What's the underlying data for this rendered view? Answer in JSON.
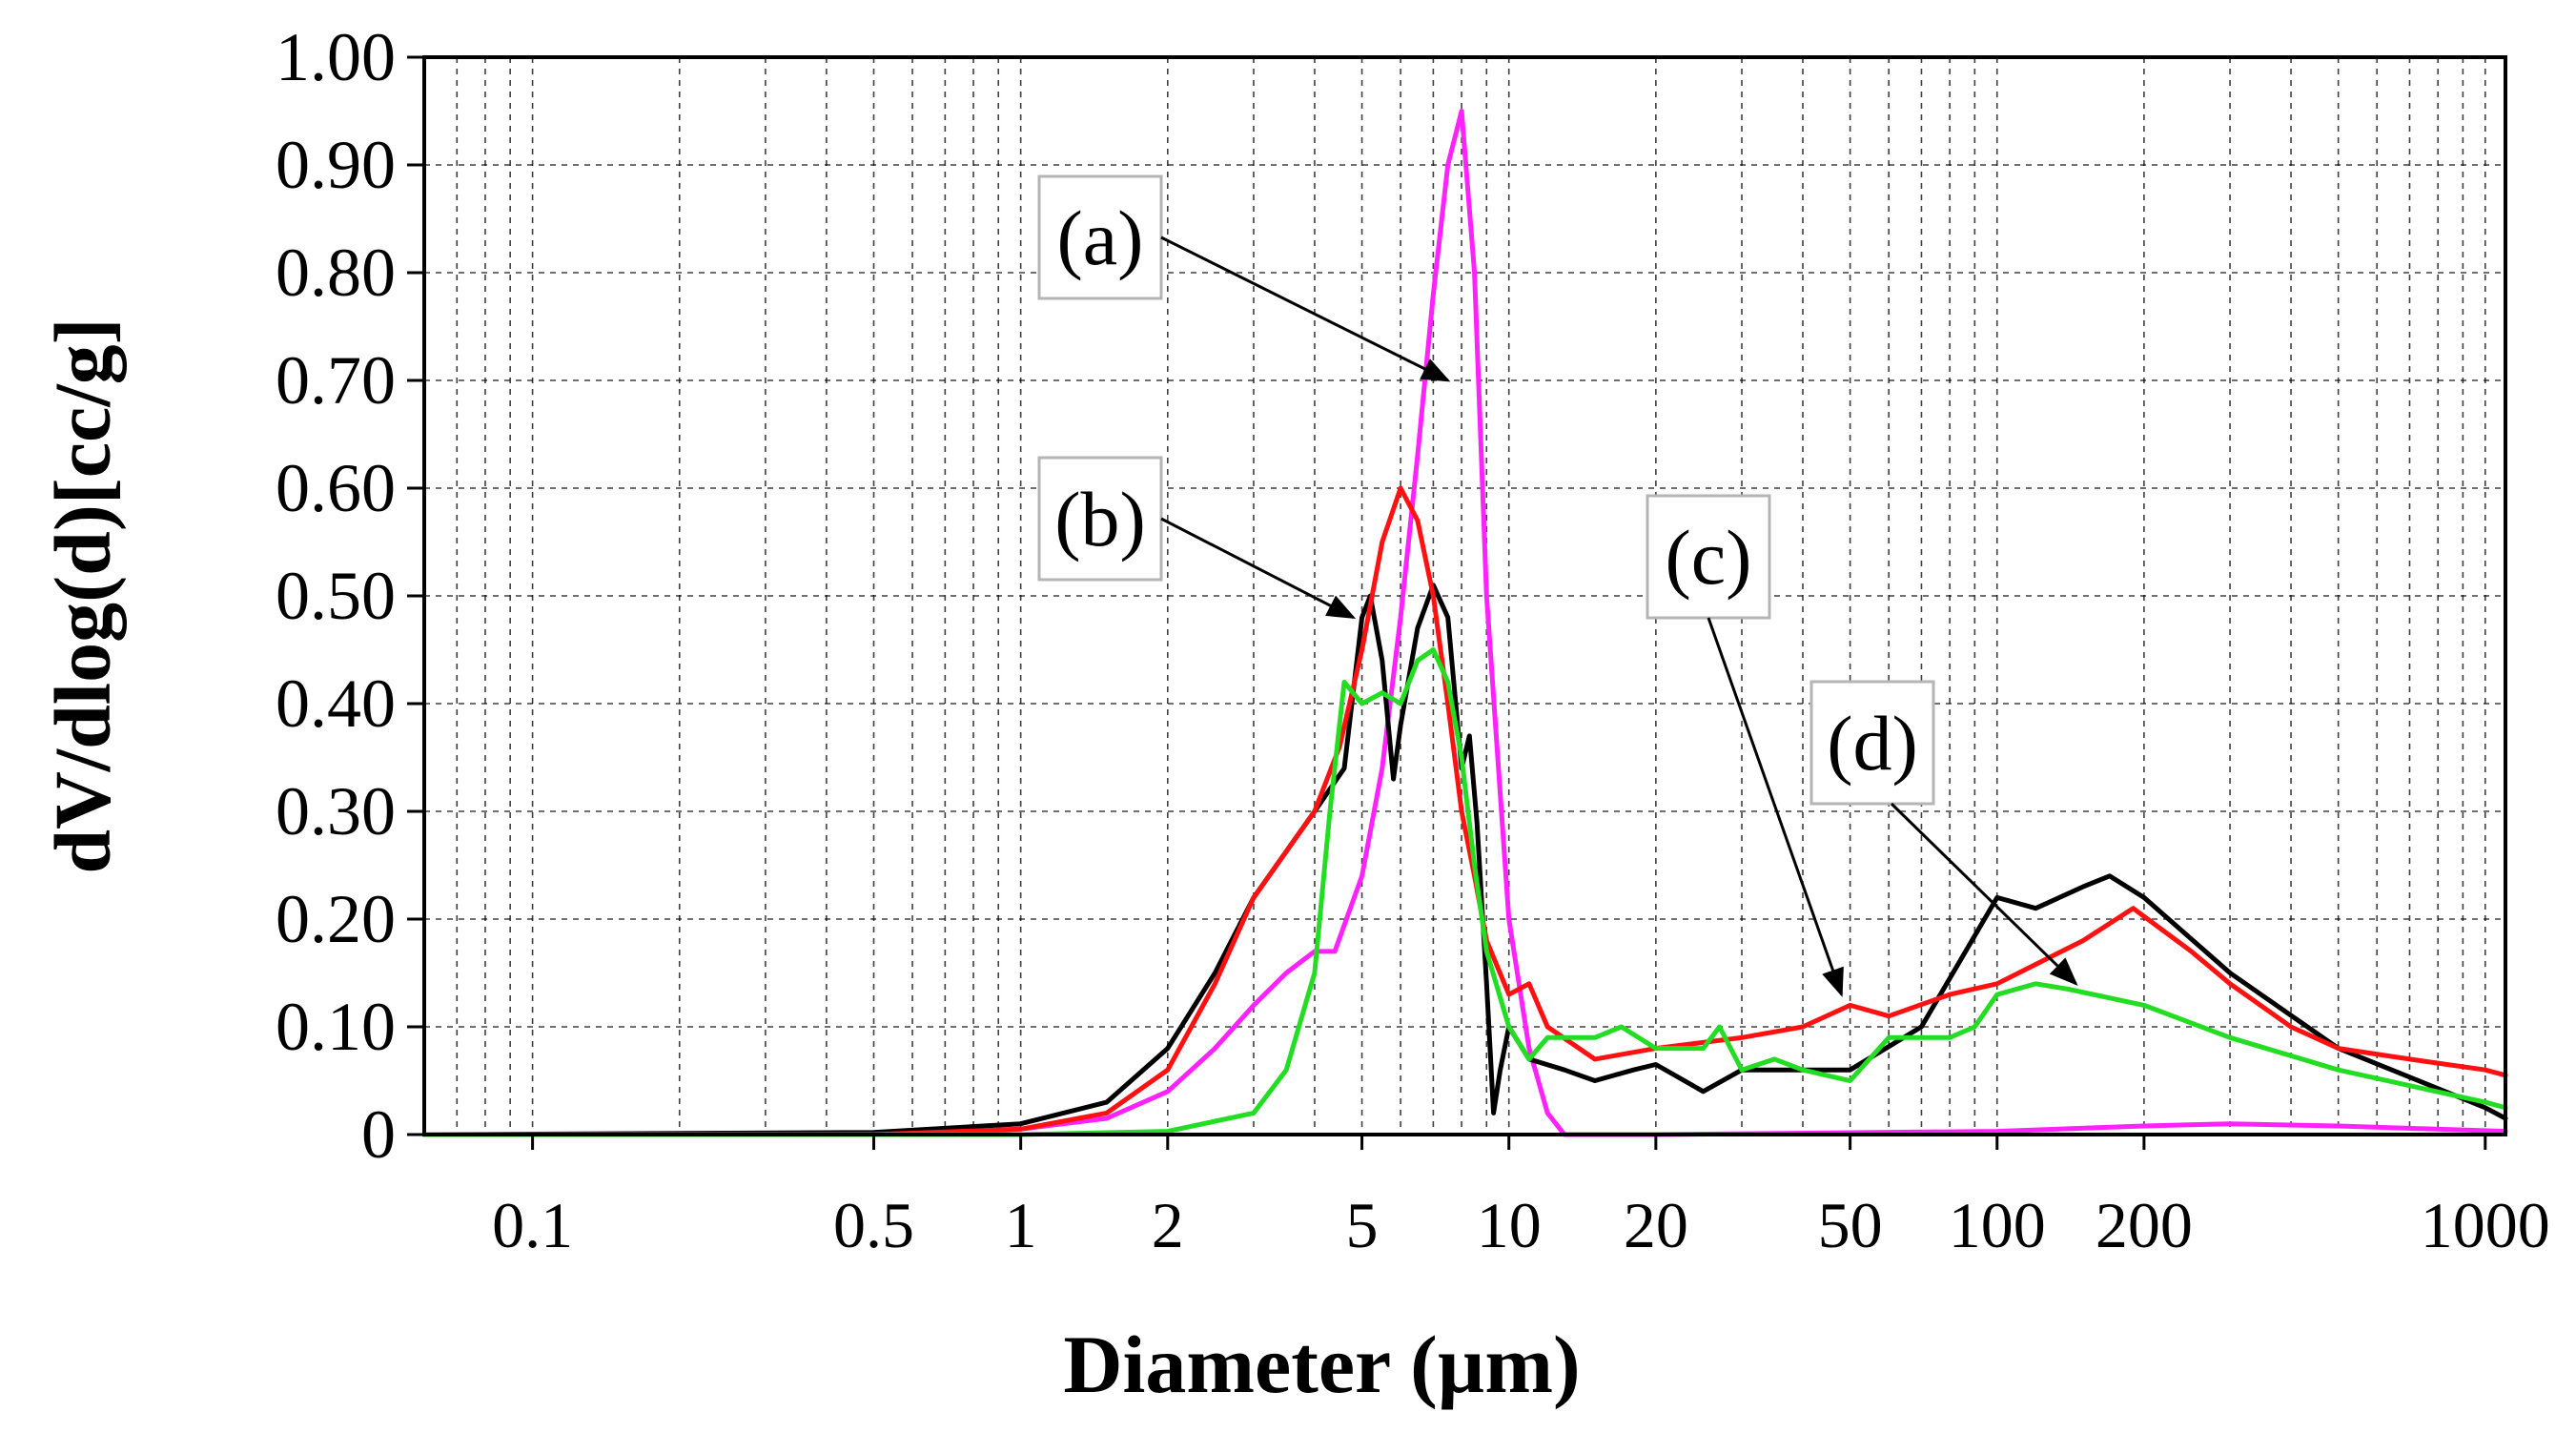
{
  "chart_data": {
    "type": "line",
    "title": "",
    "xlabel": "Diameter (µm)",
    "ylabel": "dV/dlog(d)[cc/g]",
    "xscale": "log",
    "xlim": [
      0.06,
      1100
    ],
    "ylim": [
      0,
      1.0
    ],
    "grid": true,
    "x_ticks": [
      0.1,
      0.5,
      1,
      2,
      5,
      10,
      20,
      50,
      100,
      200,
      1000
    ],
    "x_tick_labels": [
      "0.1",
      "0.5",
      "1",
      "2",
      "5",
      "10",
      "20",
      "50",
      "100",
      "200",
      "1000"
    ],
    "y_ticks": [
      0,
      0.1,
      0.2,
      0.3,
      0.4,
      0.5,
      0.6,
      0.7,
      0.8,
      0.9,
      1.0
    ],
    "y_tick_labels": [
      "0",
      "0.10",
      "0.20",
      "0.30",
      "0.40",
      "0.50",
      "0.60",
      "0.70",
      "0.80",
      "0.90",
      "1.00"
    ],
    "series": [
      {
        "name": "(a)",
        "color": "#ff22ff",
        "x": [
          0.06,
          0.5,
          1,
          1.5,
          2,
          2.5,
          3,
          3.5,
          4,
          4.4,
          5,
          5.5,
          6,
          6.5,
          7,
          7.5,
          8,
          8.5,
          9,
          10,
          11,
          12,
          13,
          20,
          100,
          200,
          300,
          500,
          1100
        ],
        "y": [
          0,
          0,
          0.005,
          0.015,
          0.04,
          0.08,
          0.12,
          0.15,
          0.17,
          0.17,
          0.24,
          0.34,
          0.48,
          0.63,
          0.78,
          0.9,
          0.95,
          0.8,
          0.5,
          0.2,
          0.08,
          0.02,
          0,
          0,
          0.003,
          0.008,
          0.01,
          0.008,
          0.003
        ]
      },
      {
        "name": "(b)",
        "color": "#000000",
        "x": [
          0.06,
          0.5,
          1,
          1.5,
          2,
          2.5,
          3,
          4,
          4.6,
          5,
          5.2,
          5.5,
          5.8,
          6,
          6.5,
          7,
          7.5,
          8,
          8.3,
          8.6,
          9,
          9.3,
          9.6,
          10,
          11,
          13,
          15,
          18,
          20,
          25,
          30,
          40,
          50,
          70,
          100,
          120,
          150,
          170,
          200,
          300,
          500,
          1000,
          1100
        ],
        "y": [
          0,
          0.002,
          0.01,
          0.03,
          0.08,
          0.15,
          0.22,
          0.3,
          0.34,
          0.48,
          0.5,
          0.44,
          0.33,
          0.38,
          0.47,
          0.51,
          0.48,
          0.34,
          0.37,
          0.29,
          0.14,
          0.02,
          0.06,
          0.1,
          0.07,
          0.06,
          0.05,
          0.06,
          0.065,
          0.04,
          0.06,
          0.06,
          0.06,
          0.1,
          0.22,
          0.21,
          0.23,
          0.24,
          0.22,
          0.15,
          0.08,
          0.025,
          0.015
        ]
      },
      {
        "name": "(c)",
        "color": "#ff1111",
        "x": [
          0.06,
          0.5,
          1,
          1.5,
          2,
          2.5,
          3,
          4,
          4.5,
          5,
          5.5,
          6,
          6.5,
          7,
          7.5,
          8,
          8.5,
          9,
          10,
          11,
          12,
          15,
          20,
          30,
          40,
          50,
          60,
          80,
          100,
          150,
          190,
          250,
          300,
          400,
          500,
          700,
          1000,
          1100
        ],
        "y": [
          0,
          0,
          0.005,
          0.02,
          0.06,
          0.14,
          0.22,
          0.3,
          0.36,
          0.45,
          0.55,
          0.6,
          0.57,
          0.5,
          0.4,
          0.3,
          0.24,
          0.18,
          0.13,
          0.14,
          0.1,
          0.07,
          0.08,
          0.09,
          0.1,
          0.12,
          0.11,
          0.13,
          0.14,
          0.18,
          0.21,
          0.17,
          0.14,
          0.1,
          0.08,
          0.07,
          0.06,
          0.055
        ]
      },
      {
        "name": "(d)",
        "color": "#22dd22",
        "x": [
          0.06,
          1,
          2,
          3,
          3.5,
          4,
          4.3,
          4.6,
          5,
          5.5,
          6,
          6.5,
          7,
          7.5,
          8,
          8.5,
          9,
          10,
          11,
          12,
          15,
          17,
          20,
          25,
          27,
          30,
          35,
          40,
          50,
          60,
          80,
          90,
          100,
          120,
          140,
          200,
          300,
          500,
          1000,
          1100
        ],
        "y": [
          0,
          0,
          0.003,
          0.02,
          0.06,
          0.15,
          0.3,
          0.42,
          0.4,
          0.41,
          0.4,
          0.44,
          0.45,
          0.42,
          0.35,
          0.25,
          0.17,
          0.1,
          0.07,
          0.09,
          0.09,
          0.1,
          0.08,
          0.08,
          0.1,
          0.06,
          0.07,
          0.06,
          0.05,
          0.09,
          0.09,
          0.1,
          0.13,
          0.14,
          0.135,
          0.12,
          0.09,
          0.06,
          0.03,
          0.025
        ]
      }
    ],
    "annotations": [
      {
        "label": "(a)",
        "points_to": {
          "x": 7.5,
          "y": 0.7
        }
      },
      {
        "label": "(b)",
        "points_to": {
          "x": 4.8,
          "y": 0.48
        }
      },
      {
        "label": "(c)",
        "points_to": {
          "x": 48,
          "y": 0.13
        }
      },
      {
        "label": "(d)",
        "points_to": {
          "x": 145,
          "y": 0.14
        }
      }
    ]
  }
}
